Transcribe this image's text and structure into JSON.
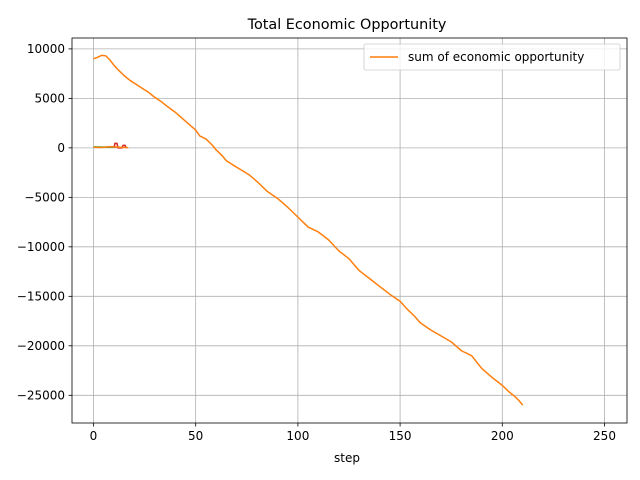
{
  "chart_data": {
    "type": "line",
    "title": "Total Economic Opportunity",
    "xlabel": "step",
    "ylabel": "",
    "xlim": [
      -10.5,
      261
    ],
    "ylim": [
      -27800,
      11100
    ],
    "xticks": [
      0,
      50,
      100,
      150,
      200,
      250
    ],
    "yticks": [
      -25000,
      -20000,
      -15000,
      -10000,
      -5000,
      0,
      5000,
      10000
    ],
    "grid": true,
    "legend": "upper right",
    "colors": {
      "series": "#ff7f0e",
      "small_red": "#d62728",
      "small_green": "#2ca02c",
      "small_orange": "#ff7f0e"
    },
    "series": [
      {
        "name": "sum of economic opportunity",
        "color": "#ff7f0e",
        "points": [
          [
            0,
            9000
          ],
          [
            2,
            9150
          ],
          [
            4,
            9350
          ],
          [
            6,
            9300
          ],
          [
            8,
            8900
          ],
          [
            10,
            8350
          ],
          [
            12,
            7900
          ],
          [
            15,
            7300
          ],
          [
            18,
            6800
          ],
          [
            21,
            6400
          ],
          [
            24,
            6000
          ],
          [
            27,
            5600
          ],
          [
            30,
            5100
          ],
          [
            33,
            4700
          ],
          [
            36,
            4200
          ],
          [
            40,
            3600
          ],
          [
            45,
            2700
          ],
          [
            50,
            1800
          ],
          [
            52,
            1200
          ],
          [
            55,
            900
          ],
          [
            58,
            300
          ],
          [
            60,
            -200
          ],
          [
            63,
            -800
          ],
          [
            65,
            -1300
          ],
          [
            68,
            -1700
          ],
          [
            72,
            -2200
          ],
          [
            76,
            -2700
          ],
          [
            80,
            -3400
          ],
          [
            85,
            -4400
          ],
          [
            90,
            -5100
          ],
          [
            95,
            -6000
          ],
          [
            100,
            -7000
          ],
          [
            102,
            -7400
          ],
          [
            105,
            -8000
          ],
          [
            110,
            -8500
          ],
          [
            115,
            -9300
          ],
          [
            120,
            -10400
          ],
          [
            125,
            -11200
          ],
          [
            130,
            -12400
          ],
          [
            135,
            -13200
          ],
          [
            140,
            -14000
          ],
          [
            145,
            -14800
          ],
          [
            150,
            -15500
          ],
          [
            153,
            -16200
          ],
          [
            157,
            -17000
          ],
          [
            160,
            -17700
          ],
          [
            165,
            -18400
          ],
          [
            170,
            -19000
          ],
          [
            175,
            -19600
          ],
          [
            180,
            -20500
          ],
          [
            185,
            -21000
          ],
          [
            190,
            -22300
          ],
          [
            195,
            -23200
          ],
          [
            200,
            -24000
          ],
          [
            203,
            -24600
          ],
          [
            206,
            -25100
          ],
          [
            208,
            -25500
          ],
          [
            210,
            -26000
          ]
        ]
      }
    ],
    "extra_marks": [
      {
        "color": "#2ca02c",
        "points": [
          [
            0,
            100
          ],
          [
            6,
            80
          ],
          [
            11,
            90
          ]
        ]
      },
      {
        "color": "#d62728",
        "points": [
          [
            10,
            0
          ],
          [
            10.5,
            450
          ],
          [
            11.5,
            450
          ],
          [
            12,
            0
          ],
          [
            14,
            0
          ],
          [
            14.5,
            250
          ],
          [
            15.5,
            250
          ],
          [
            16,
            0
          ]
        ]
      },
      {
        "color": "#ff7f0e",
        "points": [
          [
            0,
            60
          ],
          [
            4,
            40
          ],
          [
            8,
            120
          ],
          [
            12,
            80
          ],
          [
            17,
            20
          ]
        ]
      }
    ]
  }
}
